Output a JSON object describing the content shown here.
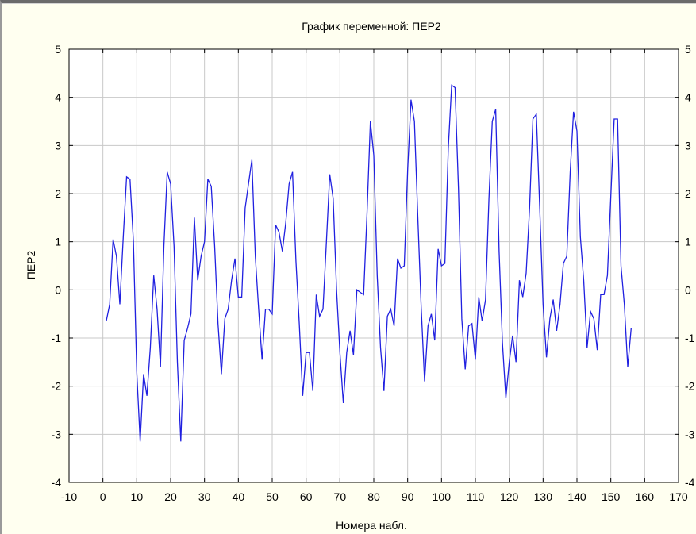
{
  "colors": {
    "background": "#fffff0",
    "plot_area": "#ffffff",
    "grid": "#c8c8c8",
    "series_line": "#2020e0",
    "axis": "#000000"
  },
  "chart_data": {
    "type": "line",
    "title": "График переменной: ПЕР2",
    "xlabel": "Номера набл.",
    "ylabel": "ПЕР2",
    "xlim": [
      -10,
      170
    ],
    "ylim": [
      -4,
      5
    ],
    "xticks": [
      -10,
      0,
      10,
      20,
      30,
      40,
      50,
      60,
      70,
      80,
      90,
      100,
      110,
      120,
      130,
      140,
      150,
      160,
      170
    ],
    "yticks": [
      -4,
      -3,
      -2,
      -1,
      0,
      1,
      2,
      3,
      4,
      5
    ],
    "right_axis_ticks": true,
    "grid": true,
    "legend": "none",
    "x": [
      1,
      2,
      3,
      4,
      5,
      6,
      7,
      8,
      9,
      10,
      11,
      12,
      13,
      14,
      15,
      16,
      17,
      18,
      19,
      20,
      21,
      22,
      23,
      24,
      25,
      26,
      27,
      28,
      29,
      30,
      31,
      32,
      33,
      34,
      35,
      36,
      37,
      38,
      39,
      40,
      41,
      42,
      43,
      44,
      45,
      46,
      47,
      48,
      49,
      50,
      51,
      52,
      53,
      54,
      55,
      56,
      57,
      58,
      59,
      60,
      61,
      62,
      63,
      64,
      65,
      66,
      67,
      68,
      69,
      70,
      71,
      72,
      73,
      74,
      75,
      76,
      77,
      78,
      79,
      80,
      81,
      82,
      83,
      84,
      85,
      86,
      87,
      88,
      89,
      90,
      91,
      92,
      93,
      94,
      95,
      96,
      97,
      98,
      99,
      100,
      101,
      102,
      103,
      104,
      105,
      106,
      107,
      108,
      109,
      110,
      111,
      112,
      113,
      114,
      115,
      116,
      117,
      118,
      119,
      120,
      121,
      122,
      123,
      124,
      125,
      126,
      127,
      128,
      129,
      130,
      131,
      132,
      133,
      134,
      135,
      136,
      137,
      138,
      139,
      140,
      141,
      142,
      143,
      144,
      145,
      146,
      147,
      148,
      149,
      150,
      151,
      152,
      153,
      154,
      155,
      156
    ],
    "values": [
      -0.65,
      -0.3,
      1.05,
      0.7,
      -0.3,
      1.1,
      2.35,
      2.3,
      1.0,
      -1.7,
      -3.15,
      -1.75,
      -2.2,
      -1.2,
      0.3,
      -0.4,
      -1.6,
      0.9,
      2.45,
      2.2,
      0.9,
      -1.5,
      -3.15,
      -1.05,
      -0.8,
      -0.5,
      1.5,
      0.2,
      0.7,
      1.0,
      2.3,
      2.15,
      0.9,
      -0.7,
      -1.75,
      -0.6,
      -0.4,
      0.2,
      0.65,
      -0.15,
      -0.15,
      1.7,
      2.2,
      2.7,
      0.7,
      -0.4,
      -1.45,
      -0.4,
      -0.4,
      -0.5,
      1.35,
      1.2,
      0.8,
      1.4,
      2.2,
      2.45,
      0.6,
      -0.7,
      -2.2,
      -1.3,
      -1.3,
      -2.1,
      -0.1,
      -0.55,
      -0.4,
      1.0,
      2.4,
      1.9,
      0.0,
      -1.3,
      -2.35,
      -1.3,
      -0.85,
      -1.35,
      0.0,
      -0.05,
      -0.1,
      1.6,
      3.5,
      2.8,
      0.3,
      -1.2,
      -2.1,
      -0.55,
      -0.4,
      -0.75,
      0.65,
      0.45,
      0.5,
      2.5,
      3.95,
      3.5,
      1.5,
      -0.35,
      -1.9,
      -0.75,
      -0.5,
      -1.05,
      0.85,
      0.5,
      0.55,
      2.95,
      4.25,
      4.2,
      2.1,
      -0.6,
      -1.65,
      -0.75,
      -0.7,
      -1.45,
      -0.15,
      -0.65,
      -0.2,
      1.9,
      3.5,
      3.75,
      0.8,
      -1.1,
      -2.25,
      -1.5,
      -0.95,
      -1.5,
      0.2,
      -0.15,
      0.35,
      1.7,
      3.55,
      3.65,
      1.7,
      -0.3,
      -1.4,
      -0.6,
      -0.2,
      -0.85,
      -0.3,
      0.55,
      0.7,
      2.45,
      3.7,
      3.3,
      1.1,
      0.2,
      -1.2,
      -0.45,
      -0.6,
      -1.25,
      -0.1,
      -0.1,
      0.3,
      1.95,
      3.55,
      3.55,
      0.5,
      -0.3,
      -1.6,
      -0.8
    ]
  }
}
